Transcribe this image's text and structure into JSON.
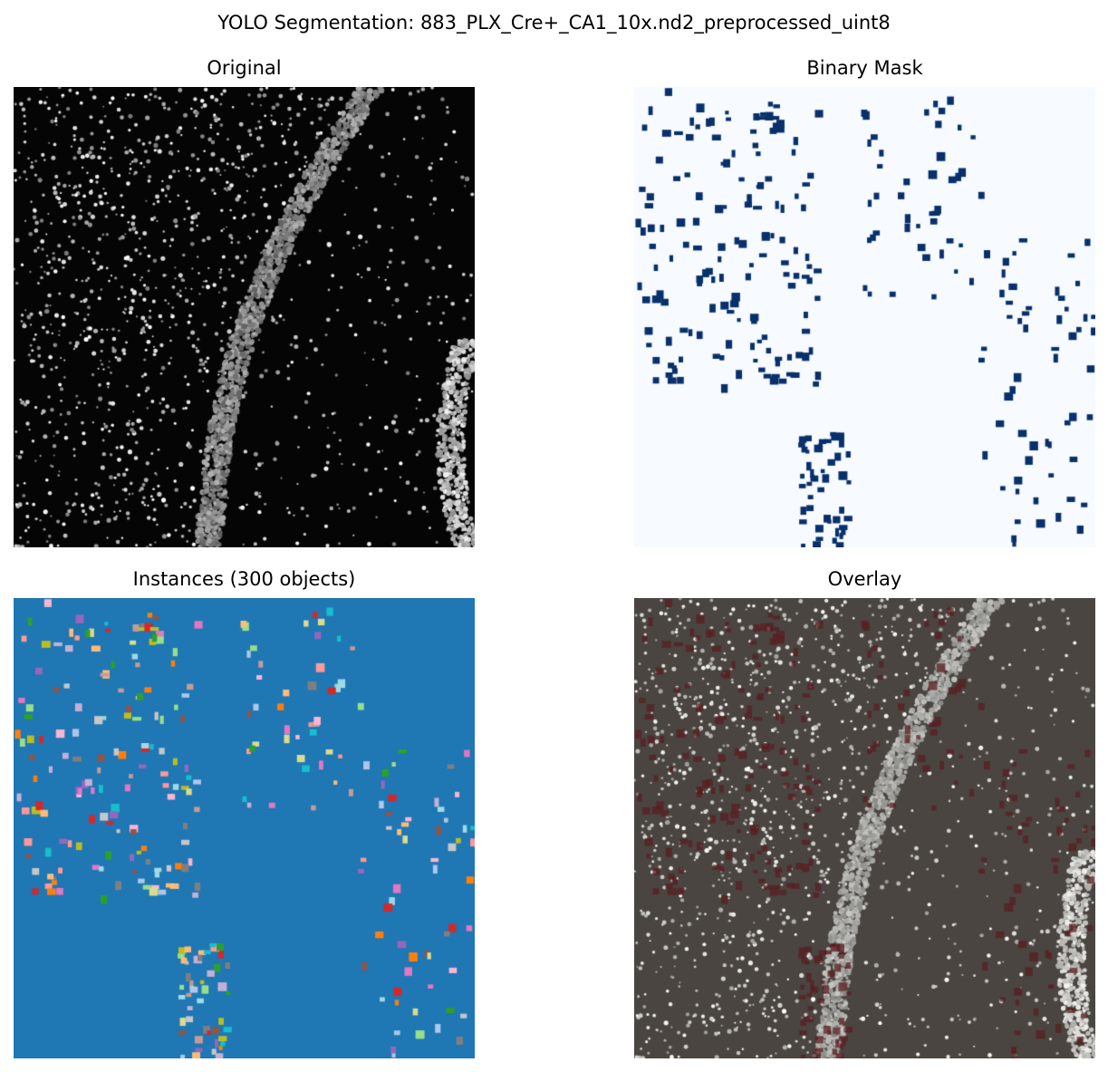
{
  "figure": {
    "title": "YOLO Segmentation: 883_PLX_Cre+_CA1_10x.nd2_preprocessed_uint8"
  },
  "panels": {
    "original": {
      "title": "Original"
    },
    "binary_mask": {
      "title": "Binary Mask"
    },
    "instances": {
      "title": "Instances (300 objects)"
    },
    "overlay": {
      "title": "Overlay"
    }
  },
  "colors": {
    "original_background": "#050505",
    "mask_background": "#f7fbff",
    "mask_foreground": "#08306b",
    "instances_background": "#1f77b4",
    "overlay_background": "#4a4541",
    "overlay_mask_tint": "#5a1e22",
    "instance_palette": [
      "#ff7f0e",
      "#2ca02c",
      "#d62728",
      "#9467bd",
      "#8c564b",
      "#e377c2",
      "#7f7f7f",
      "#bcbd22",
      "#17becf",
      "#aec7e8",
      "#ffbb78",
      "#98df8a",
      "#ff9896",
      "#c5b0d5",
      "#c49c94",
      "#f7b6d2",
      "#c7c7c7",
      "#dbdb8d",
      "#9edae5"
    ]
  }
}
